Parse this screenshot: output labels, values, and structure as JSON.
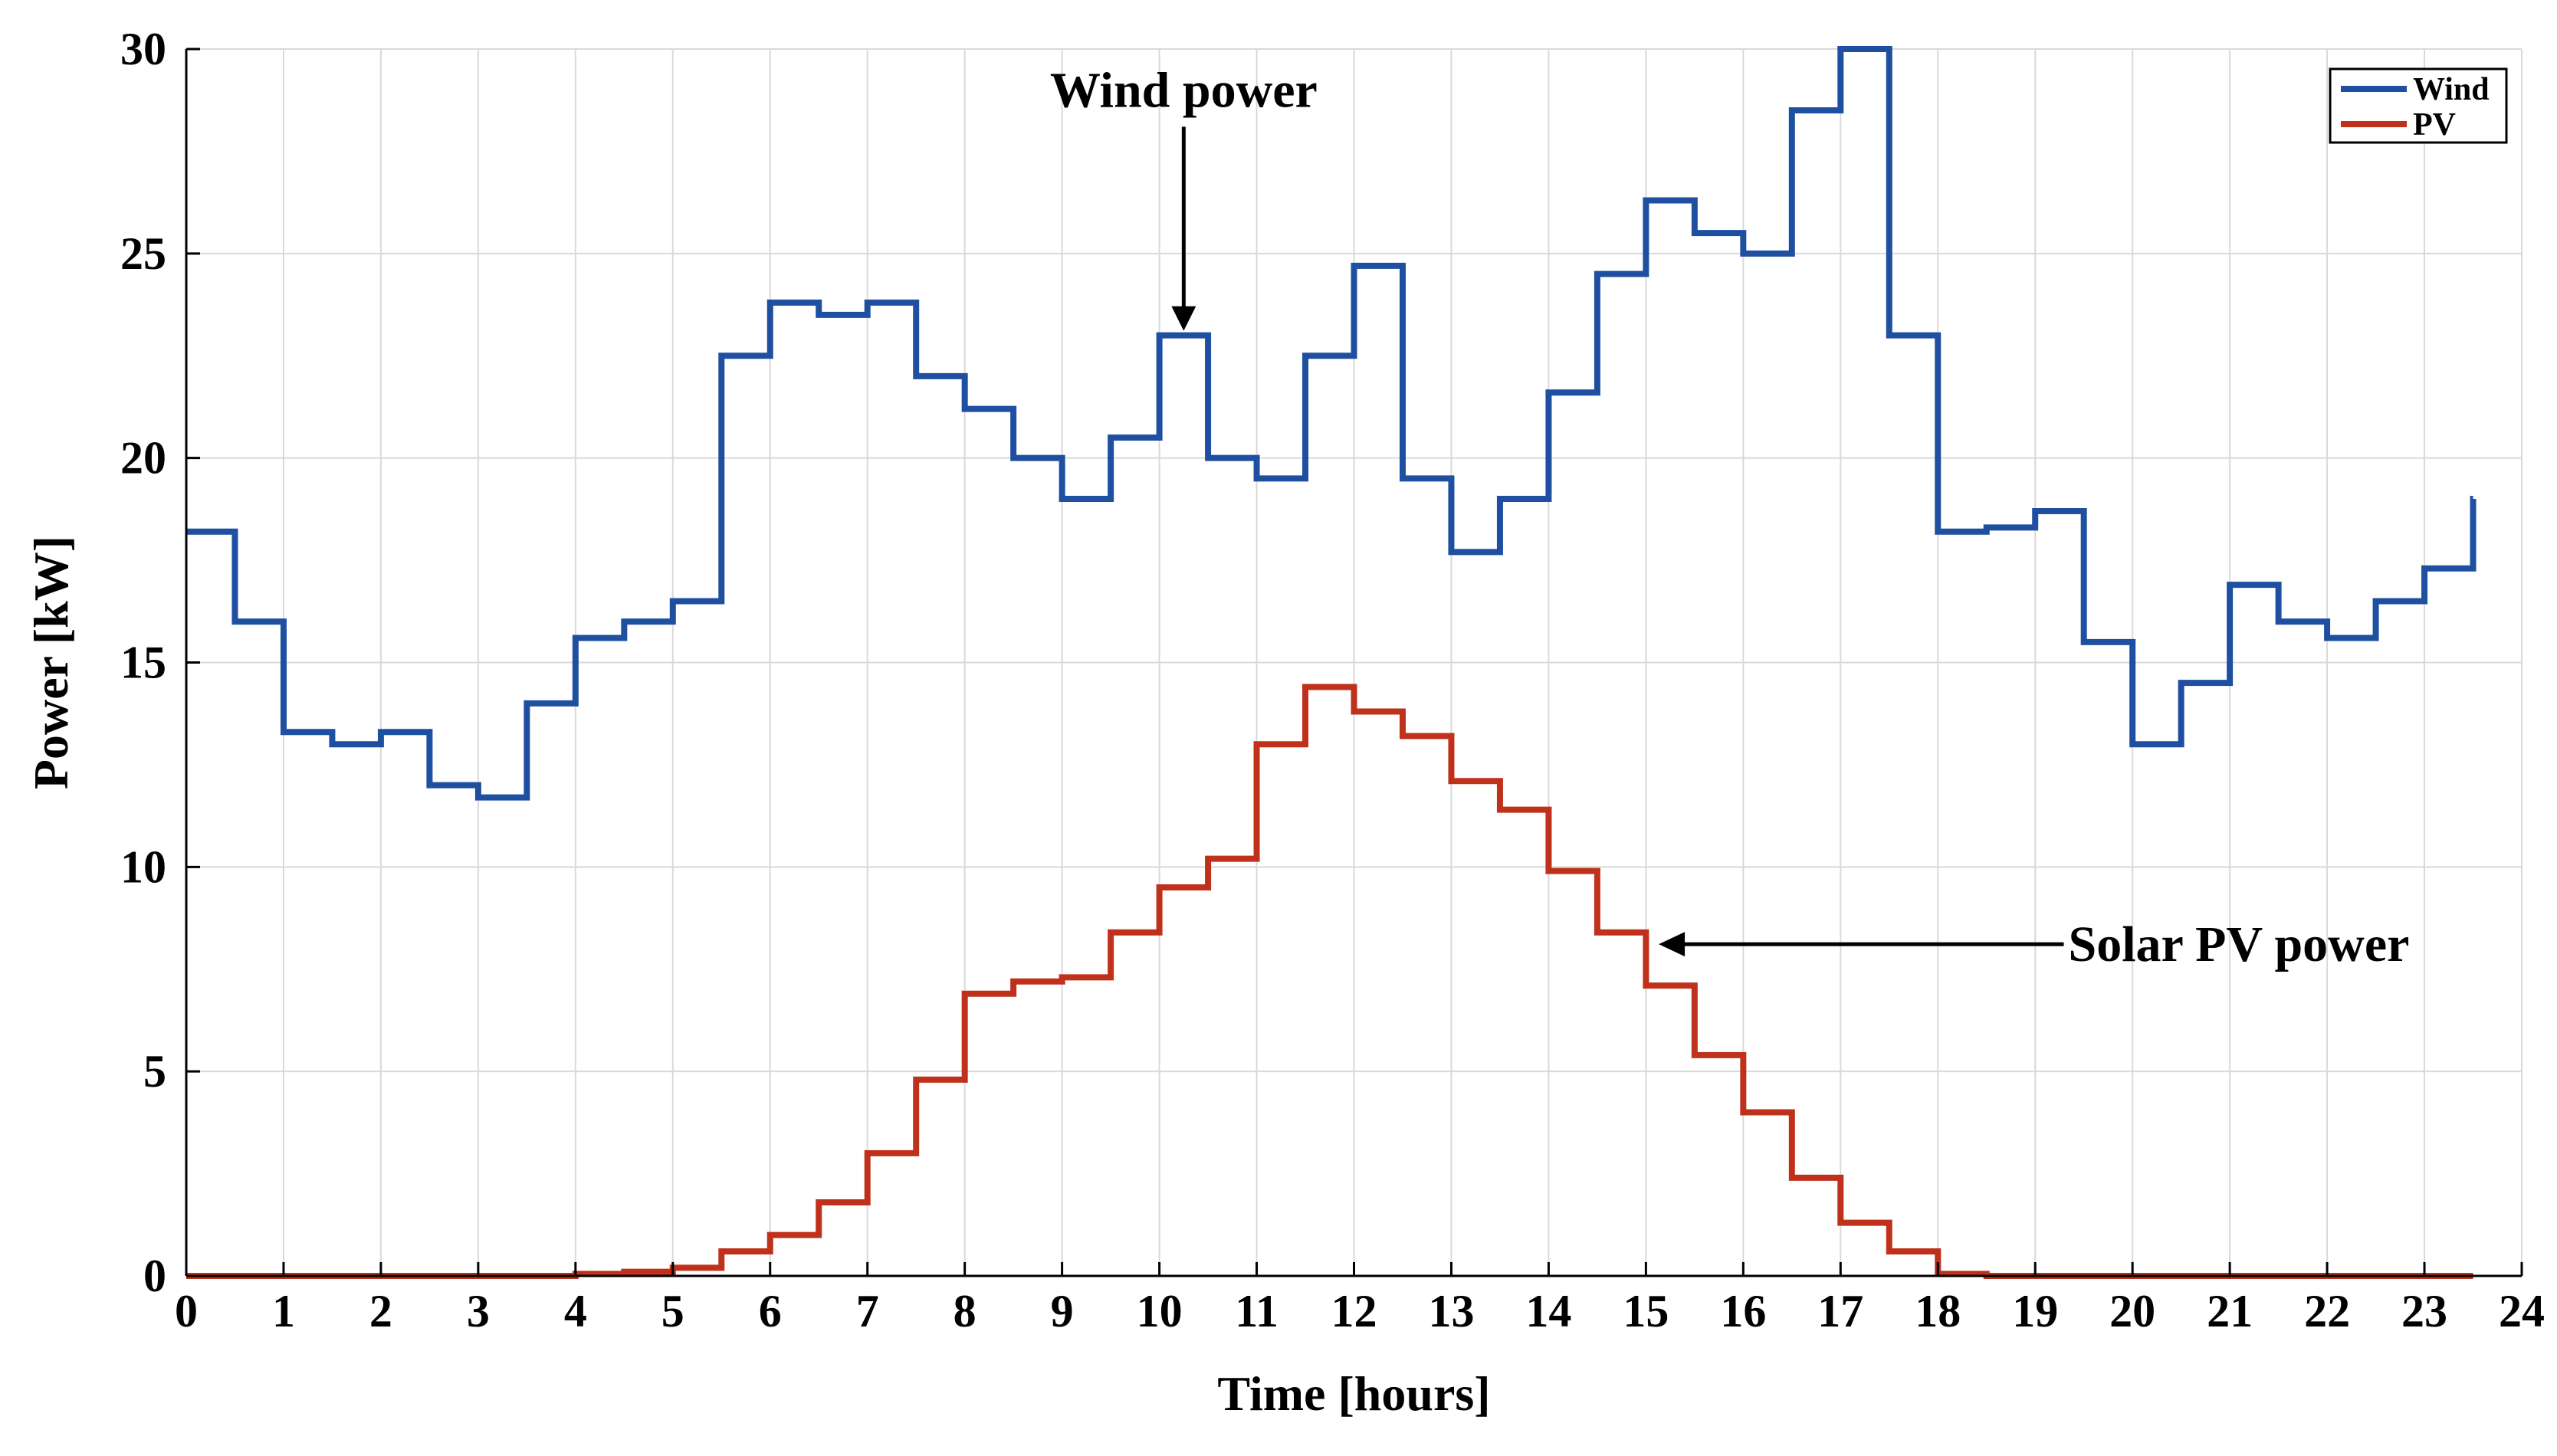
{
  "chart_data": {
    "type": "line",
    "step": true,
    "title": "",
    "xlabel": "Time [hours]",
    "ylabel": "Power [kW]",
    "xlim": [
      0,
      24
    ],
    "ylim": [
      0,
      30
    ],
    "xticks": [
      0,
      1,
      2,
      3,
      4,
      5,
      6,
      7,
      8,
      9,
      10,
      11,
      12,
      13,
      14,
      15,
      16,
      17,
      18,
      19,
      20,
      21,
      22,
      23,
      24
    ],
    "yticks": [
      0,
      5,
      10,
      15,
      20,
      25,
      30
    ],
    "grid": true,
    "legend_position": "top-right",
    "series": [
      {
        "name": "Wind",
        "color": "#1f4fa0",
        "x": [
          0,
          0.5,
          1,
          1.5,
          2,
          2.5,
          3,
          3.5,
          4,
          4.5,
          5,
          5.5,
          6,
          6.5,
          7,
          7.5,
          8,
          8.5,
          9,
          9.5,
          10,
          10.5,
          11,
          11.5,
          12,
          12.5,
          13,
          13.5,
          14,
          14.5,
          15,
          15.5,
          16,
          16.5,
          17,
          17.5,
          18,
          18.5,
          19,
          19.5,
          20,
          20.5,
          21,
          21.5,
          22,
          22.5,
          23,
          23.5
        ],
        "values": [
          18.2,
          16.0,
          13.3,
          13.0,
          13.3,
          12.0,
          11.7,
          14.0,
          15.6,
          16.0,
          16.5,
          22.5,
          23.8,
          23.5,
          23.8,
          22.0,
          21.2,
          20.0,
          19.0,
          20.5,
          23.0,
          20.0,
          19.5,
          22.5,
          24.7,
          19.5,
          17.7,
          19.0,
          21.6,
          24.5,
          26.3,
          25.5,
          25.0,
          28.5,
          30.0,
          23.0,
          18.2,
          18.3,
          18.7,
          15.5,
          13.0,
          14.5,
          16.9,
          16.0,
          15.6,
          16.5,
          17.3,
          19.0
        ]
      },
      {
        "name": "PV",
        "color": "#c0311c",
        "x": [
          0,
          0.5,
          1,
          1.5,
          2,
          2.5,
          3,
          3.5,
          4,
          4.5,
          5,
          5.5,
          6,
          6.5,
          7,
          7.5,
          8,
          8.5,
          9,
          9.5,
          10,
          10.5,
          11,
          11.5,
          12,
          12.5,
          13,
          13.5,
          14,
          14.5,
          15,
          15.5,
          16,
          16.5,
          17,
          17.5,
          18,
          18.5,
          19,
          19.5,
          20,
          20.5,
          21,
          21.5,
          22,
          22.5,
          23,
          23.5
        ],
        "values": [
          0,
          0,
          0,
          0,
          0,
          0,
          0,
          0,
          0.05,
          0.1,
          0.2,
          0.6,
          1.0,
          1.8,
          3.0,
          4.8,
          6.9,
          7.2,
          7.3,
          8.4,
          9.5,
          10.2,
          13.0,
          14.4,
          13.8,
          13.2,
          12.1,
          11.4,
          9.9,
          8.4,
          7.1,
          5.4,
          4.0,
          2.4,
          1.3,
          0.6,
          0.05,
          0,
          0,
          0,
          0,
          0,
          0,
          0,
          0,
          0,
          0,
          0
        ]
      }
    ],
    "annotations": [
      {
        "text": "Wind power",
        "arrow_to_x": 10.25,
        "arrow_to_y": 23.0,
        "text_x": 10.25,
        "text_y": 29.0
      },
      {
        "text": "Solar PV power",
        "arrow_to_x": 15.1,
        "arrow_to_y": 8.0,
        "text_x": 19.2,
        "text_y": 8.0
      }
    ]
  }
}
